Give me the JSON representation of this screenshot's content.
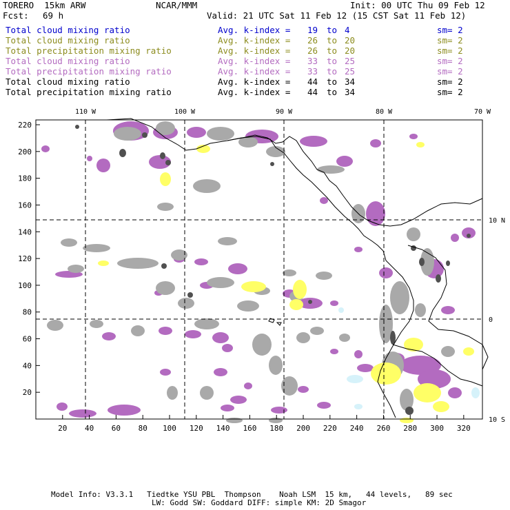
{
  "header": {
    "model": "TORERO  15km ARW",
    "center": "NCAR/MMM",
    "init": "Init: 00 UTC Thu 09 Feb 12",
    "fcst_label": "Fcst:",
    "fcst_value": "69 h",
    "valid": "Valid: 21 UTC Sat 11 Feb 12 (15 CST Sat 11 Feb 12)"
  },
  "legend": [
    {
      "field": "Total cloud mixing ratio",
      "k_label": "Avg. k-index =",
      "k_from": "19",
      "k_to_word": "to",
      "k_to": "4",
      "sm": "sm= 2",
      "color": "#0000cc"
    },
    {
      "field": "Total cloud mixing ratio",
      "k_label": "Avg. k-index =",
      "k_from": "26",
      "k_to_word": "to",
      "k_to": "20",
      "sm": "sm= 2",
      "color": "#8c8c1e"
    },
    {
      "field": "Total precipitation mixing ratio",
      "k_label": "Avg. k-index =",
      "k_from": "26",
      "k_to_word": "to",
      "k_to": "20",
      "sm": "sm= 2",
      "color": "#8c8c1e"
    },
    {
      "field": "Total cloud mixing ratio",
      "k_label": "Avg. k-index =",
      "k_from": "33",
      "k_to_word": "to",
      "k_to": "25",
      "sm": "sm= 2",
      "color": "#b36bc0"
    },
    {
      "field": "Total precipitation mixing ratio",
      "k_label": "Avg. k-index =",
      "k_from": "33",
      "k_to_word": "to",
      "k_to": "25",
      "sm": "sm= 2",
      "color": "#b36bc0"
    },
    {
      "field": "Total cloud mixing ratio",
      "k_label": "Avg. k-index =",
      "k_from": "44",
      "k_to_word": "to",
      "k_to": "34",
      "sm": "sm= 2",
      "color": "#000000"
    },
    {
      "field": "Total precipitation mixing ratio",
      "k_label": "Avg. k-index =",
      "k_from": "44",
      "k_to_word": "to",
      "k_to": "34",
      "sm": "sm= 2",
      "color": "#000000"
    }
  ],
  "map": {
    "lon_labels": [
      "110 W",
      "100 W",
      "90 W",
      "80 W",
      "70 W"
    ],
    "lat_labels": [
      "10 N",
      "0",
      "10 S"
    ],
    "y_ticks": [
      "220",
      "200",
      "180",
      "160",
      "140",
      "120",
      "100",
      "80",
      "60",
      "40",
      "20"
    ],
    "x_ticks": [
      "20",
      "40",
      "60",
      "80",
      "100",
      "120",
      "140",
      "160",
      "180",
      "200",
      "220",
      "240",
      "260",
      "280",
      "300",
      "320"
    ],
    "colors": {
      "gray": "#a9a9a9",
      "dark": "#505050",
      "purple": "#b36bc0",
      "yellow": "#ffff66",
      "lightblue": "#d6f2fa",
      "coast": "#000000"
    }
  },
  "footer": {
    "line1": "Model Info: V3.3.1   Tiedtke YSU PBL  Thompson    Noah LSM  15 km,   44 levels,   89 sec",
    "line2": "LW: Godd SW: Goddard DIFF: simple KM: 2D Smagor"
  }
}
